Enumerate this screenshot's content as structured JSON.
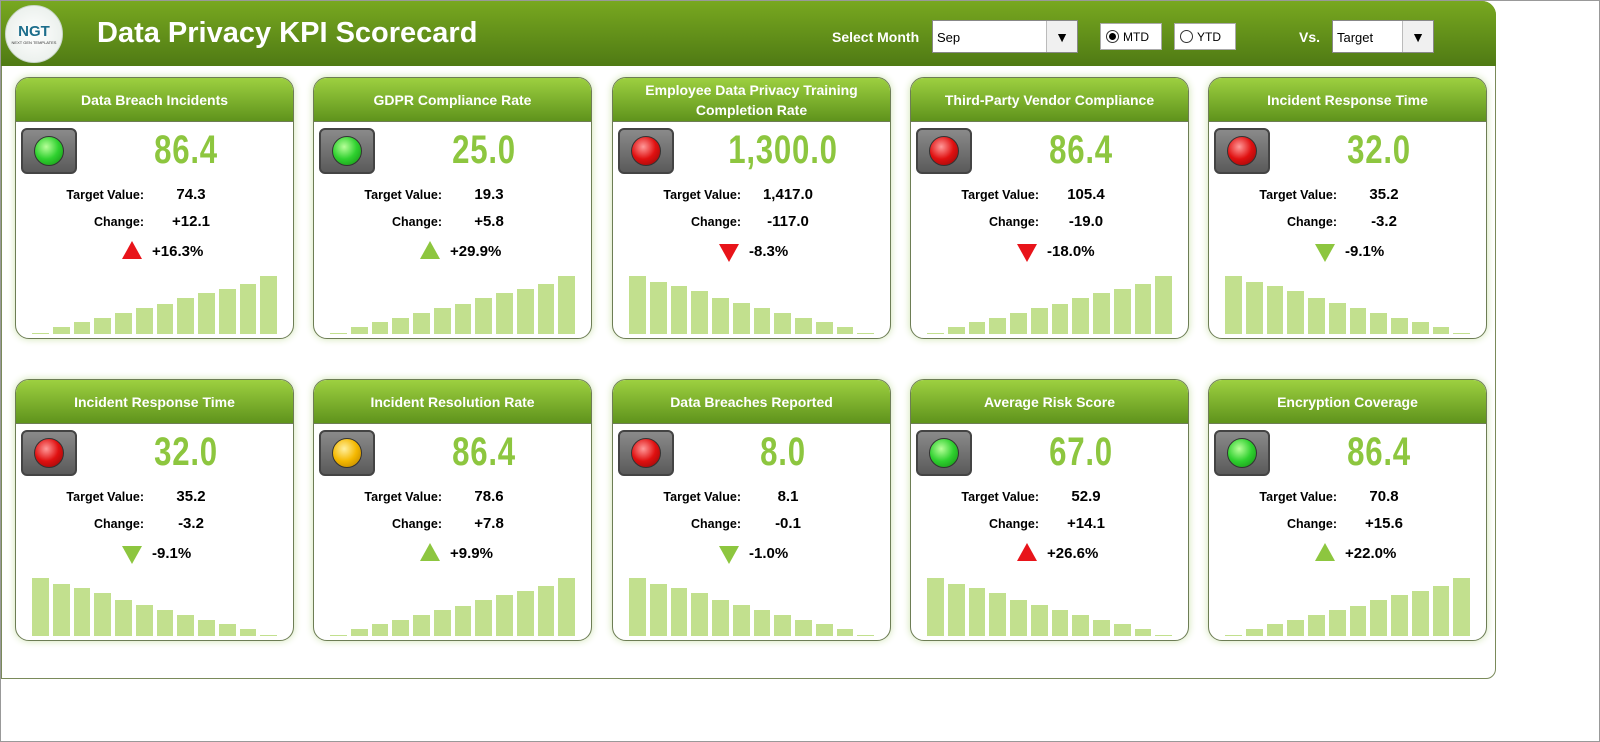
{
  "header": {
    "logo_text": "NGT",
    "logo_subtext": "NEXT GEN TEMPLATES",
    "title": "Data Privacy KPI Scorecard",
    "select_month_label": "Select Month",
    "month_value": "Sep",
    "mtd_label": "MTD",
    "ytd_label": "YTD",
    "period_selected": "MTD",
    "vs_label": "Vs.",
    "vs_value": "Target"
  },
  "labels": {
    "target": "Target Value:",
    "change": "Change:"
  },
  "colors": {
    "good": "#8dc63f",
    "bad": "#e8141a",
    "amber": "#f5b800",
    "bar": "#c2e08e"
  },
  "cards": [
    {
      "title": "Data Breach Incidents",
      "status": "green",
      "value": "86.4",
      "target": "74.3",
      "change": "+12.1",
      "pct": "+16.3%",
      "arrow": "up",
      "arrow_color": "red",
      "trend": [
        2,
        12,
        20,
        27,
        36,
        44,
        52,
        62,
        70,
        78,
        86,
        100
      ]
    },
    {
      "title": "GDPR Compliance Rate",
      "status": "green",
      "value": "25.0",
      "target": "19.3",
      "change": "+5.8",
      "pct": "+29.9%",
      "arrow": "up",
      "arrow_color": "green",
      "trend": [
        2,
        12,
        20,
        27,
        36,
        44,
        52,
        62,
        70,
        78,
        86,
        100
      ]
    },
    {
      "title": "Employee Data Privacy Training Completion Rate",
      "status": "red",
      "value": "1,300.0",
      "target": "1,417.0",
      "change": "-117.0",
      "pct": "-8.3%",
      "arrow": "down",
      "arrow_color": "red",
      "trend": [
        100,
        90,
        82,
        74,
        62,
        54,
        45,
        37,
        27,
        20,
        12,
        2
      ]
    },
    {
      "title": "Third-Party Vendor Compliance",
      "status": "red",
      "value": "86.4",
      "target": "105.4",
      "change": "-19.0",
      "pct": "-18.0%",
      "arrow": "down",
      "arrow_color": "red",
      "trend": [
        2,
        12,
        20,
        27,
        36,
        44,
        52,
        62,
        70,
        78,
        86,
        100
      ]
    },
    {
      "title": "Incident Response Time",
      "status": "red",
      "value": "32.0",
      "target": "35.2",
      "change": "-3.2",
      "pct": "-9.1%",
      "arrow": "down",
      "arrow_color": "green",
      "trend": [
        100,
        90,
        82,
        74,
        62,
        54,
        45,
        37,
        27,
        20,
        12,
        2
      ]
    },
    {
      "title": "Incident Response Time",
      "status": "red",
      "value": "32.0",
      "target": "35.2",
      "change": "-3.2",
      "pct": "-9.1%",
      "arrow": "down",
      "arrow_color": "green",
      "trend": [
        100,
        90,
        82,
        74,
        62,
        54,
        45,
        37,
        27,
        20,
        12,
        2
      ]
    },
    {
      "title": "Incident Resolution Rate",
      "status": "amber",
      "value": "86.4",
      "target": "78.6",
      "change": "+7.8",
      "pct": "+9.9%",
      "arrow": "up",
      "arrow_color": "green",
      "trend": [
        2,
        12,
        20,
        27,
        36,
        44,
        52,
        62,
        70,
        78,
        86,
        100
      ]
    },
    {
      "title": "Data Breaches Reported",
      "status": "red",
      "value": "8.0",
      "target": "8.1",
      "change": "-0.1",
      "pct": "-1.0%",
      "arrow": "down",
      "arrow_color": "green",
      "trend": [
        100,
        90,
        82,
        74,
        62,
        54,
        45,
        37,
        27,
        20,
        12,
        2
      ]
    },
    {
      "title": "Average Risk Score",
      "status": "green",
      "value": "67.0",
      "target": "52.9",
      "change": "+14.1",
      "pct": "+26.6%",
      "arrow": "up",
      "arrow_color": "red",
      "trend": [
        100,
        90,
        82,
        74,
        62,
        54,
        45,
        37,
        27,
        20,
        12,
        2
      ]
    },
    {
      "title": "Encryption Coverage",
      "status": "green",
      "value": "86.4",
      "target": "70.8",
      "change": "+15.6",
      "pct": "+22.0%",
      "arrow": "up",
      "arrow_color": "green",
      "trend": [
        2,
        12,
        20,
        27,
        36,
        44,
        52,
        62,
        70,
        78,
        86,
        100
      ]
    }
  ]
}
